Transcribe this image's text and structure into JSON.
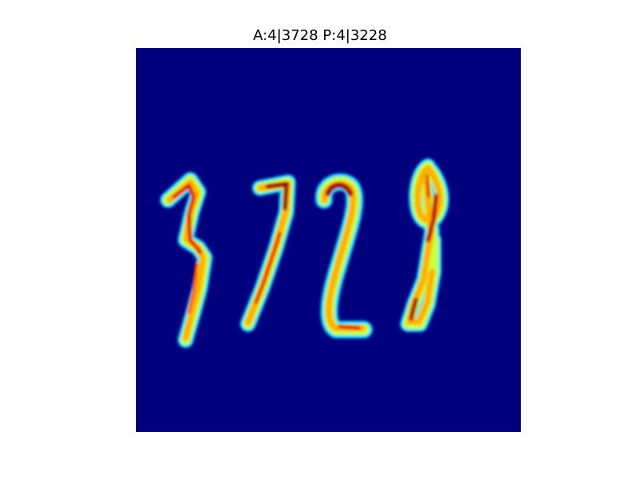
{
  "figure": {
    "title": "A:4|3728 P:4|3228",
    "colormap": "jet",
    "background_color": "#00007f",
    "content": "handwritten digits 3728 shown as a heatmap"
  }
}
